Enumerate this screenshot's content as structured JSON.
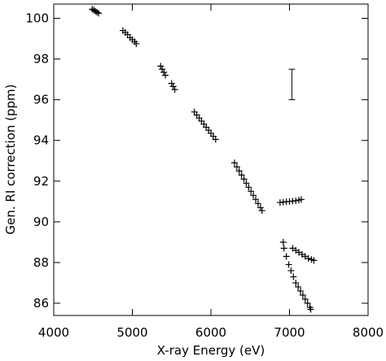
{
  "chart_data": {
    "type": "scatter",
    "marker": "+",
    "color": "#000000",
    "xlabel": "X-ray Energy (eV)",
    "ylabel": "Gen. RI correction (ppm)",
    "xlim": [
      4000,
      8000
    ],
    "ylim": [
      85.4,
      100.7
    ],
    "xticks": [
      4000,
      5000,
      6000,
      7000,
      8000
    ],
    "yticks": [
      86,
      88,
      90,
      92,
      94,
      96,
      98,
      100
    ],
    "x": [
      4490,
      4510,
      4530,
      4550,
      4570,
      4880,
      4910,
      4940,
      4970,
      5000,
      5030,
      5050,
      5360,
      5380,
      5400,
      5420,
      5500,
      5520,
      5540,
      5790,
      5820,
      5850,
      5880,
      5910,
      5940,
      5970,
      6000,
      6030,
      6060,
      6300,
      6330,
      6360,
      6390,
      6420,
      6450,
      6480,
      6510,
      6540,
      6570,
      6600,
      6630,
      6650,
      6880,
      6920,
      6960,
      7000,
      7040,
      7080,
      7120,
      7150,
      6920,
      7040,
      7080,
      7120,
      7160,
      7200,
      7240,
      7280,
      7310,
      6930,
      6960,
      6990,
      7020,
      7050,
      7080,
      7110,
      7140,
      7170,
      7200,
      7230,
      7260,
      7270
    ],
    "values": [
      100.45,
      100.4,
      100.35,
      100.3,
      100.25,
      99.4,
      99.3,
      99.2,
      99.05,
      98.95,
      98.85,
      98.75,
      97.65,
      97.5,
      97.35,
      97.2,
      96.8,
      96.65,
      96.5,
      95.4,
      95.25,
      95.1,
      94.95,
      94.8,
      94.65,
      94.5,
      94.35,
      94.2,
      94.05,
      92.9,
      92.7,
      92.5,
      92.3,
      92.1,
      91.9,
      91.7,
      91.5,
      91.3,
      91.1,
      90.9,
      90.7,
      90.55,
      90.95,
      90.97,
      90.99,
      91.0,
      91.02,
      91.04,
      91.07,
      91.1,
      89.0,
      88.7,
      88.6,
      88.5,
      88.4,
      88.3,
      88.2,
      88.15,
      88.1,
      88.7,
      88.3,
      87.9,
      87.6,
      87.3,
      87.0,
      86.8,
      86.6,
      86.4,
      86.2,
      86.0,
      85.8,
      85.7
    ],
    "error_bar": {
      "x": 7030,
      "y": [
        96,
        97.5
      ]
    }
  }
}
